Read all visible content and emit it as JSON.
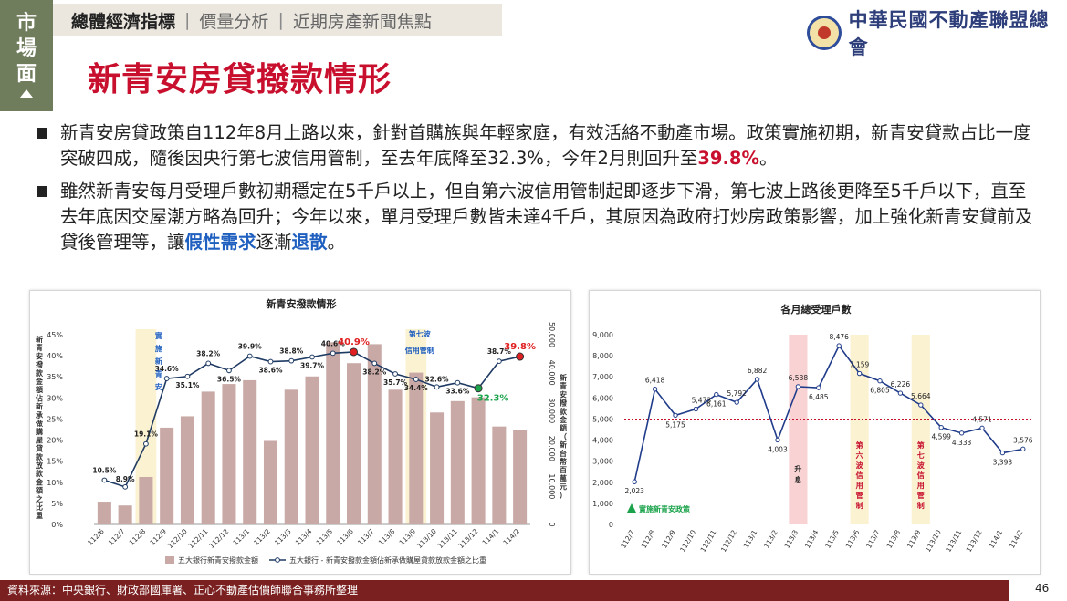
{
  "side_tag": {
    "chars": [
      "市",
      "場",
      "面"
    ]
  },
  "nav": {
    "active": "總體經濟指標",
    "items": [
      "價量分析",
      "近期房產新聞焦點"
    ]
  },
  "logo": {
    "name": "中華民國不動產聯盟總會"
  },
  "title": "新青安房貸撥款情形",
  "bullets": [
    {
      "parts": [
        {
          "text": "新青安房貸政策自112年8月上路以來，針對首購族與年輕家庭，有效活絡不動產市場。政策實施初期，新青安貸款占比一度突破四成，隨後因央行第七波信用管制，至去年底降至32.3%，今年2月則回升至",
          "style": ""
        },
        {
          "text": "39.8%",
          "style": "red"
        },
        {
          "text": "。",
          "style": ""
        }
      ]
    },
    {
      "parts": [
        {
          "text": "雖然新青安每月受理戶數初期穩定在5千戶以上，但自第六波信用管制起即逐步下滑，第七波上路後更降至5千戶以下，直至去年底因交屋潮方略為回升；今年以來，單月受理戶數皆未達4千戶，其原因為政府打炒房政策影響，加上強化新青安貸前及貸後管理等，讓",
          "style": ""
        },
        {
          "text": "假性需求",
          "style": "blue"
        },
        {
          "text": "逐漸",
          "style": ""
        },
        {
          "text": "退散",
          "style": "blue"
        },
        {
          "text": "。",
          "style": ""
        }
      ]
    }
  ],
  "chart_data": [
    {
      "type": "bar",
      "title": "新青安撥款情形",
      "categories": [
        "112/6",
        "112/7",
        "112/8",
        "112/9",
        "112/10",
        "112/11",
        "112/12",
        "113/1",
        "113/2",
        "113/3",
        "113/4",
        "113/5",
        "113/6",
        "113/7",
        "113/8",
        "113/9",
        "113/10",
        "113/11",
        "113/12",
        "114/1",
        "114/2"
      ],
      "series": [
        {
          "name": "五大銀行新青安撥款金額",
          "values": [
            6000,
            5000,
            12500,
            25500,
            28500,
            35000,
            37000,
            38000,
            22000,
            35500,
            39000,
            48000,
            42500,
            47500,
            35500,
            40000,
            29500,
            32500,
            33500,
            25800,
            25000
          ]
        },
        {
          "name": "五大銀行 - 新青安撥款金額佔新承做購屋貸款放款金額之比重",
          "values": [
            10.5,
            8.9,
            19.1,
            34.6,
            35.1,
            38.2,
            36.5,
            39.9,
            38.6,
            38.8,
            39.7,
            40.6,
            40.9,
            38.2,
            35.7,
            34.4,
            32.6,
            33.6,
            32.3,
            38.7,
            39.8
          ]
        }
      ],
      "data_labels": [
        "10.5%",
        "8.9%",
        "19.1%",
        "34.6%",
        "35.1%",
        "38.2%",
        "36.5%",
        "39.9%",
        "38.6%",
        "38.8%",
        "39.7%",
        "40.6%",
        "40.9%",
        "38.2%",
        "35.7%",
        "34.4%",
        "32.6%",
        "33.6%",
        "32.3%",
        "38.7%",
        "39.8%"
      ],
      "ylabel_left": "新青安撥款金額佔新承做購屋貸款放款金額之比重",
      "ylabel_right": "新青安撥款金額（新台幣百萬元）",
      "ylim_left": [
        0,
        45
      ],
      "ylim_right": [
        0,
        50000
      ],
      "yticks_left": [
        "0%",
        "5%",
        "10%",
        "15%",
        "20%",
        "25%",
        "30%",
        "35%",
        "40%",
        "45%"
      ],
      "yticks_right": [
        "0",
        "10,000",
        "20,000",
        "30,000",
        "40,000",
        "50,000"
      ],
      "annotations": [
        {
          "text": "實施新青安",
          "at": "112/8",
          "color": "#1f5fbf"
        },
        {
          "text": "第七波信用管制",
          "at": "113/9",
          "color": "#1f5fbf"
        }
      ],
      "highlights": [
        {
          "label": "40.9%",
          "index": 12,
          "color": "#e02020"
        },
        {
          "label": "39.8%",
          "index": 20,
          "color": "#e02020"
        },
        {
          "label": "32.3%",
          "index": 18,
          "color": "#1aa34a"
        }
      ],
      "legend_placement": "bottom",
      "colors": {
        "bar": "#c9a9a6",
        "line": "#1f3b63",
        "band": "#fbf2d2"
      }
    },
    {
      "type": "line",
      "title": "各月總受理戶數",
      "categories": [
        "112/7",
        "112/8",
        "112/9",
        "112/10",
        "112/11",
        "112/12",
        "113/1",
        "113/2",
        "113/3",
        "113/4",
        "113/5",
        "113/6",
        "113/7",
        "113/8",
        "113/9",
        "113/10",
        "113/11",
        "113/12",
        "114/1",
        "114/2"
      ],
      "series": [
        {
          "values": [
            2023,
            6418,
            5175,
            5473,
            6161,
            5792,
            6882,
            4003,
            6538,
            6485,
            8476,
            7159,
            6805,
            6226,
            5664,
            4599,
            4333,
            4571,
            3393,
            3576
          ]
        }
      ],
      "data_labels": [
        "2,023",
        "6,418",
        "5,175",
        "5,473",
        "6,161",
        "5,792",
        "6,882",
        "4,003",
        "6,538",
        "6,485",
        "8,476",
        "7,159",
        "6,805",
        "6,226",
        "5,664",
        "4,599",
        "4,333",
        "4,571",
        "3,393",
        "3,576"
      ],
      "ylim": [
        0,
        9000
      ],
      "yticks": [
        "0",
        "1,000",
        "2,000",
        "3,000",
        "4,000",
        "5,000",
        "6,000",
        "7,000",
        "8,000",
        "9,000"
      ],
      "reference_line": 5000,
      "bands": [
        {
          "text": "升息",
          "at": "113/3",
          "color": "#f9d3d3"
        },
        {
          "text": "第六波信用管制",
          "at": "113/6",
          "color": "#fbf2d2"
        },
        {
          "text": "第七波信用管制",
          "at": "113/9",
          "color": "#fbf2d2"
        }
      ],
      "annotations": [
        {
          "text": "實施新青安政策",
          "at": "112/7",
          "color": "#1aa34a"
        }
      ],
      "colors": {
        "line": "#1f3b8a",
        "ref": "#c8102e"
      }
    }
  ],
  "footer": "資料來源：中央銀行、財政部國庫署、正心不動產估價師聯合事務所整理",
  "page_number": "46"
}
